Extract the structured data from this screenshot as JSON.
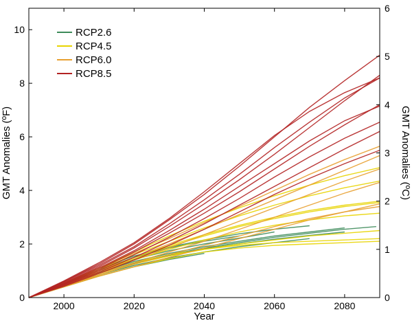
{
  "chart_data": {
    "type": "line",
    "title": "",
    "xlabel": "Year",
    "ylabel_left": "GMT Anomalies (ºF)",
    "ylabel_right": "GMT Anomalies (ºC)",
    "xlim": [
      1990,
      2090
    ],
    "ylim_left": [
      0,
      10.8
    ],
    "ylim_right": [
      0,
      6
    ],
    "x_ticks": [
      "2000",
      "2020",
      "2040",
      "2060",
      "2080"
    ],
    "x_tick_values": [
      2000,
      2020,
      2040,
      2060,
      2080
    ],
    "y_left_ticks": [
      "0",
      "2",
      "4",
      "6",
      "8",
      "10"
    ],
    "y_left_tick_values": [
      0,
      2,
      4,
      6,
      8,
      10
    ],
    "y_right_ticks": [
      "0",
      "1",
      "2",
      "3",
      "4",
      "5",
      "6"
    ],
    "y_right_tick_values": [
      0,
      1,
      2,
      3,
      4,
      5,
      6
    ],
    "legend_position": "top-left",
    "series": [
      {
        "name": "RCP2.6",
        "color": "#3d8b5a",
        "runs": [
          {
            "x": [
              1990,
              2000,
              2010,
              2020,
              2030,
              2040,
              2050,
              2060,
              2070,
              2080
            ],
            "y": [
              0,
              0.48,
              0.95,
              1.35,
              1.65,
              1.9,
              2.1,
              2.3,
              2.45,
              2.6
            ]
          },
          {
            "x": [
              1990,
              2000,
              2010,
              2020,
              2030,
              2040,
              2050,
              2060,
              2070,
              2080
            ],
            "y": [
              0,
              0.45,
              0.9,
              1.28,
              1.58,
              1.82,
              2.0,
              2.18,
              2.32,
              2.45
            ]
          },
          {
            "x": [
              1990,
              2000,
              2010,
              2020,
              2030,
              2040,
              2050,
              2060
            ],
            "y": [
              0,
              0.5,
              1.0,
              1.42,
              1.75,
              2.0,
              2.22,
              2.45
            ]
          },
          {
            "x": [
              1990,
              2000,
              2010,
              2020,
              2030,
              2040,
              2050,
              2060,
              2070
            ],
            "y": [
              0,
              0.42,
              0.85,
              1.2,
              1.48,
              1.7,
              1.9,
              2.05,
              2.2
            ]
          },
          {
            "x": [
              1990,
              2000,
              2010,
              2020,
              2030,
              2040,
              2050
            ],
            "y": [
              0,
              0.52,
              1.05,
              1.5,
              1.85,
              2.1,
              2.3
            ]
          },
          {
            "x": [
              1990,
              2000,
              2010,
              2020,
              2030,
              2040,
              2050,
              2060,
              2070,
              2080,
              2089
            ],
            "y": [
              0,
              0.46,
              0.92,
              1.3,
              1.6,
              1.85,
              2.05,
              2.25,
              2.4,
              2.55,
              2.65
            ]
          },
          {
            "x": [
              1990,
              2000,
              2010,
              2020,
              2030,
              2040
            ],
            "y": [
              0,
              0.4,
              0.8,
              1.15,
              1.42,
              1.65
            ]
          },
          {
            "x": [
              1990,
              2000,
              2010,
              2020,
              2030,
              2040,
              2050,
              2060,
              2070
            ],
            "y": [
              0,
              0.55,
              1.1,
              1.55,
              1.88,
              2.15,
              2.38,
              2.55,
              2.68
            ]
          }
        ]
      },
      {
        "name": "RCP4.5",
        "color": "#e8d400",
        "runs": [
          {
            "x": [
              1990,
              2000,
              2010,
              2020,
              2030,
              2040,
              2050,
              2060,
              2070,
              2080,
              2090
            ],
            "y": [
              0,
              0.45,
              0.9,
              1.3,
              1.6,
              1.8,
              1.95,
              2.05,
              2.1,
              2.15,
              2.2
            ]
          },
          {
            "x": [
              1990,
              2000,
              2010,
              2020,
              2030,
              2040,
              2050,
              2060,
              2070,
              2080,
              2090
            ],
            "y": [
              0,
              0.5,
              1.0,
              1.5,
              1.95,
              2.35,
              2.7,
              3.0,
              3.25,
              3.45,
              3.6
            ]
          },
          {
            "x": [
              1990,
              2000,
              2010,
              2020,
              2030,
              2040,
              2050,
              2060,
              2070,
              2080,
              2090
            ],
            "y": [
              0,
              0.55,
              1.1,
              1.7,
              2.3,
              2.85,
              3.35,
              3.8,
              4.2,
              4.55,
              4.85
            ]
          },
          {
            "x": [
              1990,
              2000,
              2010,
              2020,
              2030,
              2040,
              2050,
              2060,
              2070,
              2080,
              2090
            ],
            "y": [
              0,
              0.48,
              0.95,
              1.4,
              1.8,
              2.15,
              2.45,
              2.7,
              2.9,
              3.05,
              3.15
            ]
          },
          {
            "x": [
              1990,
              2000,
              2010,
              2020,
              2030,
              2040,
              2050,
              2060,
              2070,
              2080,
              2090
            ],
            "y": [
              0,
              0.52,
              1.05,
              1.6,
              2.1,
              2.6,
              3.05,
              3.45,
              3.8,
              4.1,
              4.35
            ]
          },
          {
            "x": [
              1990,
              2000,
              2010,
              2020,
              2030,
              2040,
              2050,
              2060,
              2070,
              2080,
              2090
            ],
            "y": [
              0,
              0.43,
              0.85,
              1.25,
              1.55,
              1.8,
              2.0,
              2.15,
              2.3,
              2.4,
              2.5
            ]
          },
          {
            "x": [
              1990,
              2000,
              2010,
              2020,
              2030,
              2040,
              2050,
              2060,
              2070,
              2080,
              2090
            ],
            "y": [
              0,
              0.47,
              0.95,
              1.45,
              1.9,
              2.3,
              2.65,
              2.95,
              3.2,
              3.4,
              3.55
            ]
          },
          {
            "x": [
              1990,
              2000,
              2010,
              2020,
              2030,
              2040,
              2050,
              2060,
              2070,
              2080,
              2090
            ],
            "y": [
              0,
              0.4,
              0.8,
              1.15,
              1.45,
              1.7,
              1.85,
              1.95,
              2.0,
              2.05,
              2.1
            ]
          }
        ]
      },
      {
        "name": "RCP6.0",
        "color": "#e8a030",
        "runs": [
          {
            "x": [
              1990,
              2000,
              2010,
              2020,
              2030,
              2040,
              2050,
              2060,
              2070,
              2080,
              2090
            ],
            "y": [
              0,
              0.5,
              1.0,
              1.5,
              2.0,
              2.55,
              3.1,
              3.65,
              4.2,
              4.75,
              5.3
            ]
          },
          {
            "x": [
              1990,
              2000,
              2010,
              2020,
              2030,
              2040,
              2050,
              2060,
              2070,
              2080,
              2090
            ],
            "y": [
              0,
              0.45,
              0.9,
              1.3,
              1.7,
              2.1,
              2.55,
              3.0,
              3.45,
              3.9,
              4.3
            ]
          },
          {
            "x": [
              1990,
              2000,
              2010,
              2020,
              2030,
              2040,
              2050,
              2060,
              2070,
              2080,
              2090
            ],
            "y": [
              0,
              0.55,
              1.1,
              1.65,
              2.2,
              2.8,
              3.4,
              4.0,
              4.6,
              5.15,
              5.65
            ]
          },
          {
            "x": [
              1990,
              2000,
              2010,
              2020,
              2030,
              2040,
              2050,
              2060,
              2070,
              2080,
              2090
            ],
            "y": [
              0,
              0.4,
              0.8,
              1.15,
              1.5,
              1.85,
              2.2,
              2.55,
              2.9,
              3.2,
              3.5
            ]
          },
          {
            "x": [
              1990,
              2000,
              2010,
              2020,
              2030,
              2040,
              2050,
              2060,
              2070,
              2080,
              2090
            ],
            "y": [
              0,
              0.48,
              0.95,
              1.4,
              1.85,
              2.35,
              2.85,
              3.35,
              3.85,
              4.35,
              4.8
            ]
          },
          {
            "x": [
              1990,
              2000,
              2010,
              2020,
              2030,
              2040,
              2050,
              2060,
              2070,
              2080,
              2090
            ],
            "y": [
              0,
              0.42,
              0.85,
              1.25,
              1.6,
              1.95,
              2.3,
              2.65,
              2.95,
              3.2,
              3.4
            ]
          }
        ]
      },
      {
        "name": "RCP8.5",
        "color": "#b22222",
        "runs": [
          {
            "x": [
              1990,
              2000,
              2010,
              2020,
              2030,
              2040,
              2050,
              2060,
              2070,
              2080,
              2090
            ],
            "y": [
              0,
              0.55,
              1.15,
              1.85,
              2.65,
              3.5,
              4.4,
              5.35,
              6.35,
              7.35,
              8.3
            ]
          },
          {
            "x": [
              1990,
              2000,
              2010,
              2020,
              2030,
              2040,
              2050,
              2060,
              2070,
              2080,
              2090
            ],
            "y": [
              0,
              0.6,
              1.25,
              2.0,
              2.9,
              3.85,
              4.9,
              6.0,
              7.1,
              8.1,
              9.05
            ]
          },
          {
            "x": [
              1990,
              2000,
              2010,
              2020,
              2030,
              2040,
              2050,
              2060,
              2070,
              2080,
              2090
            ],
            "y": [
              0,
              0.5,
              1.05,
              1.7,
              2.4,
              3.15,
              3.95,
              4.8,
              5.65,
              6.45,
              7.2
            ]
          },
          {
            "x": [
              1990,
              2000,
              2010,
              2020,
              2030,
              2040,
              2050,
              2060,
              2070,
              2080,
              2090
            ],
            "y": [
              0,
              0.45,
              0.95,
              1.5,
              2.1,
              2.75,
              3.45,
              4.15,
              4.85,
              5.55,
              6.2
            ]
          },
          {
            "x": [
              1990,
              2000,
              2010,
              2020,
              2030,
              2040,
              2050,
              2060,
              2070,
              2080,
              2090
            ],
            "y": [
              0,
              0.58,
              1.2,
              1.9,
              2.75,
              3.65,
              4.6,
              5.6,
              6.55,
              7.45,
              8.2
            ]
          },
          {
            "x": [
              1990,
              2000,
              2010,
              2020,
              2030,
              2040,
              2050,
              2060,
              2070,
              2080,
              2090
            ],
            "y": [
              0,
              0.52,
              1.1,
              1.75,
              2.5,
              3.3,
              4.15,
              5.0,
              5.85,
              6.6,
              7.15
            ]
          },
          {
            "x": [
              1990,
              2000,
              2010,
              2020,
              2030,
              2040,
              2050,
              2060,
              2070,
              2080,
              2090
            ],
            "y": [
              0,
              0.48,
              1.0,
              1.6,
              2.25,
              2.95,
              3.7,
              4.5,
              5.25,
              5.95,
              6.55
            ]
          },
          {
            "x": [
              1990,
              2000,
              2010,
              2020,
              2030,
              2040,
              2050,
              2060,
              2070,
              2080,
              2090
            ],
            "y": [
              0,
              0.62,
              1.3,
              2.05,
              2.95,
              3.95,
              5.0,
              6.05,
              6.95,
              7.65,
              8.2
            ]
          },
          {
            "x": [
              1990,
              2000,
              2010,
              2020,
              2030,
              2040,
              2050,
              2060,
              2070,
              2080,
              2090
            ],
            "y": [
              0,
              0.42,
              0.9,
              1.4,
              1.95,
              2.55,
              3.2,
              3.85,
              4.45,
              5.0,
              5.5
            ]
          }
        ]
      }
    ]
  }
}
